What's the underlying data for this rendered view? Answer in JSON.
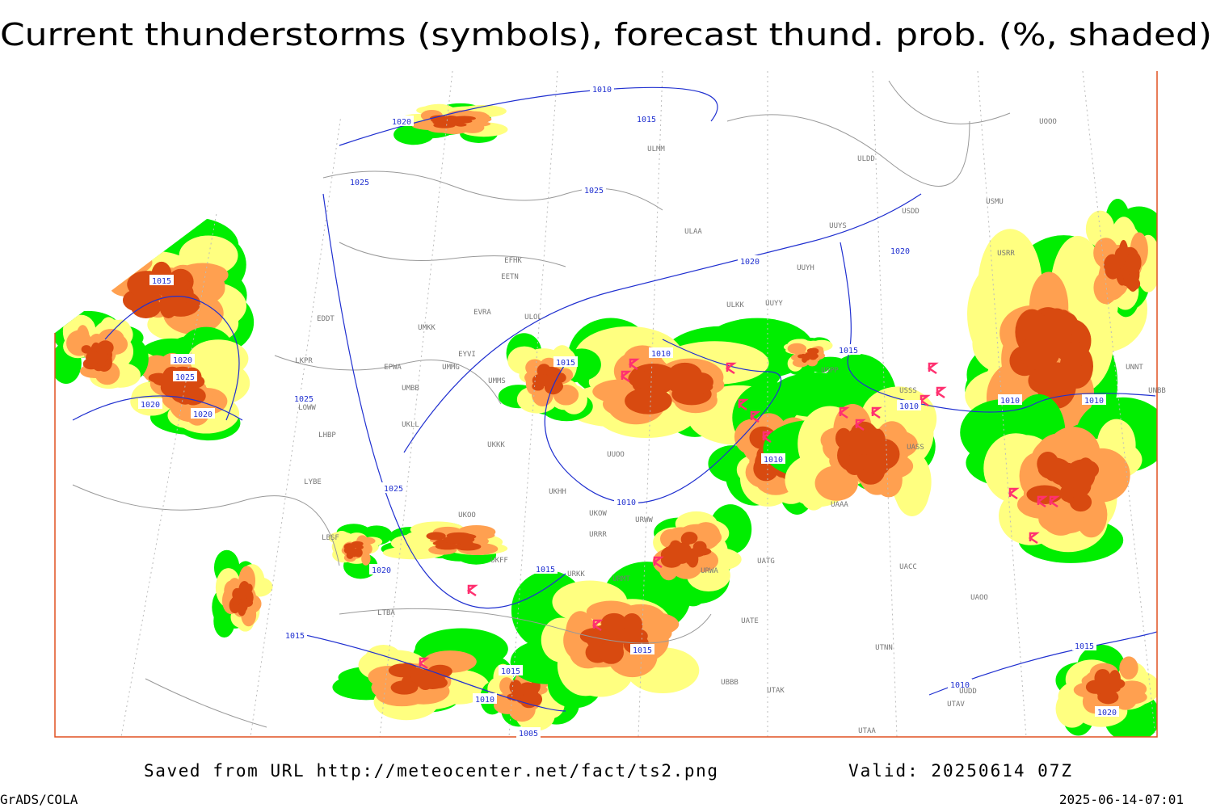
{
  "title": "Current thunderstorms (symbols), forecast thund. prob. (%, shaded)",
  "footer": {
    "source": "Saved from URL http://meteocenter.net/fact/ts2.png",
    "valid": "Valid: 20250614 07Z",
    "software": "GrADS/COLA",
    "timestamp": "2025-06-14-07:01"
  },
  "isobar_labels": [
    "1010",
    "1015",
    "1020",
    "1025",
    "1025",
    "1020",
    "1020",
    "1015",
    "1020",
    "1025",
    "1020",
    "1020",
    "1025",
    "1015",
    "1010",
    "1015",
    "1010",
    "1010",
    "1010",
    "1010",
    "1025",
    "1010",
    "1020",
    "1015",
    "1015",
    "1015",
    "1015",
    "1010",
    "1005",
    "1015",
    "1010",
    "1020"
  ],
  "station_labels": [
    "ULMM",
    "ULDD",
    "USDD",
    "USMU",
    "UUYS",
    "ULAA",
    "EFHK",
    "EETN",
    "UUYH",
    "USRR",
    "EVRA",
    "ULOL",
    "ULKK",
    "UUYY",
    "EDDT",
    "UMKK",
    "EYVI",
    "EPWA",
    "UMMG",
    "UMMS",
    "UMBB",
    "LKPR",
    "LOWW",
    "LHBP",
    "UKLL",
    "UKKK",
    "UUOO",
    "UKHH",
    "UKOO",
    "UKOW",
    "URWW",
    "URRR",
    "UATG",
    "URWA",
    "UKFF",
    "URKK",
    "URMT",
    "LTBA",
    "UATE",
    "UTNN",
    "UBBB",
    "UTAK",
    "UAOO",
    "UTAA",
    "UNNT",
    "UNBB",
    "UOOO",
    "USSS",
    "USPP",
    "UASS",
    "UAAA",
    "UACC",
    "LYBE",
    "LBSF",
    "UUDD",
    "UTAV"
  ]
}
